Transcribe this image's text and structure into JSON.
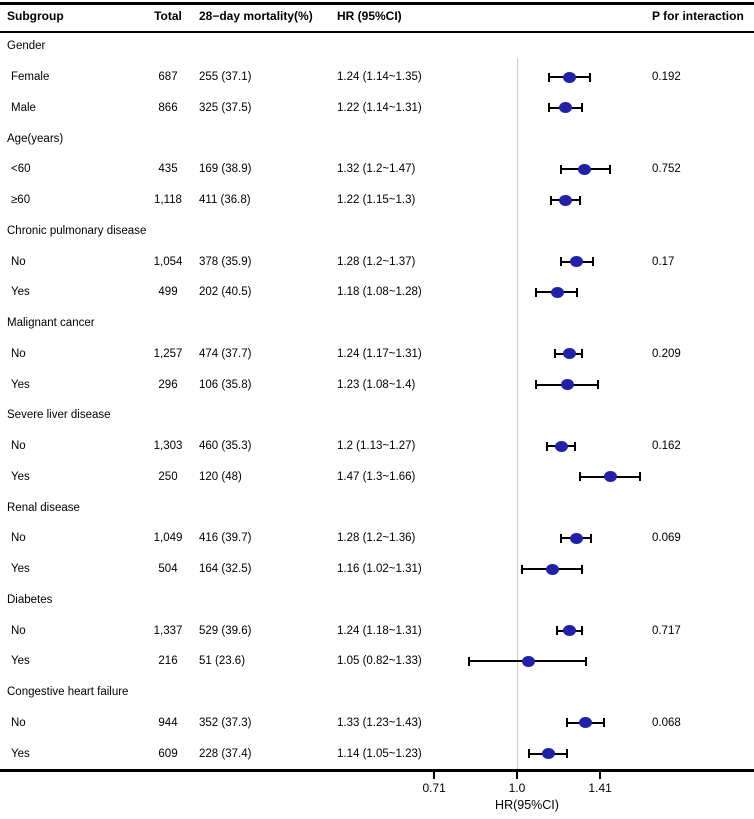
{
  "colors": {
    "dot": "#2121a6",
    "ref_line": "#c9c9c9",
    "rule": "#000000"
  },
  "chart_data": {
    "type": "forest",
    "columns": {
      "subgroup": "Subgroup",
      "total": "Total",
      "mortality": "28−day mortality(%)",
      "hr": "HR (95%CI)",
      "p": "P for interaction"
    },
    "axis": {
      "label": "HR(95%CI)",
      "scale": "log",
      "ref_line": 1.0,
      "ticks": [
        {
          "value": 0.71,
          "label": "0.71"
        },
        {
          "value": 1.0,
          "label": "1.0"
        },
        {
          "value": 1.41,
          "label": "1.41"
        }
      ]
    },
    "groups": [
      {
        "label": "Gender",
        "p": "0.192",
        "items": [
          {
            "label": "Female",
            "total": "687",
            "mortality": "255 (37.1)",
            "hr_text": "1.24 (1.14~1.35)",
            "est": 1.24,
            "lo": 1.14,
            "hi": 1.35
          },
          {
            "label": "Male",
            "total": "866",
            "mortality": "325 (37.5)",
            "hr_text": "1.22 (1.14~1.31)",
            "est": 1.22,
            "lo": 1.14,
            "hi": 1.31
          }
        ]
      },
      {
        "label": "Age(years)",
        "p": "0.752",
        "items": [
          {
            "label": "<60",
            "total": "435",
            "mortality": "169 (38.9)",
            "hr_text": "1.32 (1.2~1.47)",
            "est": 1.32,
            "lo": 1.2,
            "hi": 1.47
          },
          {
            "label": "≥60",
            "total": "1,118",
            "mortality": "411 (36.8)",
            "hr_text": "1.22 (1.15~1.3)",
            "est": 1.22,
            "lo": 1.15,
            "hi": 1.3
          }
        ]
      },
      {
        "label": "Chronic pulmonary disease",
        "p": "0.17",
        "items": [
          {
            "label": "No",
            "total": "1,054",
            "mortality": "378 (35.9)",
            "hr_text": "1.28 (1.2~1.37)",
            "est": 1.28,
            "lo": 1.2,
            "hi": 1.37
          },
          {
            "label": "Yes",
            "total": "499",
            "mortality": "202 (40.5)",
            "hr_text": "1.18 (1.08~1.28)",
            "est": 1.18,
            "lo": 1.08,
            "hi": 1.28
          }
        ]
      },
      {
        "label": "Malignant cancer",
        "p": "0.209",
        "items": [
          {
            "label": "No",
            "total": "1,257",
            "mortality": "474 (37.7)",
            "hr_text": "1.24 (1.17~1.31)",
            "est": 1.24,
            "lo": 1.17,
            "hi": 1.31
          },
          {
            "label": "Yes",
            "total": "296",
            "mortality": "106 (35.8)",
            "hr_text": "1.23 (1.08~1.4)",
            "est": 1.23,
            "lo": 1.08,
            "hi": 1.4
          }
        ]
      },
      {
        "label": "Severe liver disease",
        "p": "0.162",
        "items": [
          {
            "label": "No",
            "total": "1,303",
            "mortality": "460 (35.3)",
            "hr_text": "1.2 (1.13~1.27)",
            "est": 1.2,
            "lo": 1.13,
            "hi": 1.27
          },
          {
            "label": "Yes",
            "total": "250",
            "mortality": "120 (48)",
            "hr_text": "1.47 (1.3~1.66)",
            "est": 1.47,
            "lo": 1.3,
            "hi": 1.66
          }
        ]
      },
      {
        "label": "Renal disease",
        "p": "0.069",
        "items": [
          {
            "label": "No",
            "total": "1,049",
            "mortality": "416 (39.7)",
            "hr_text": "1.28 (1.2~1.36)",
            "est": 1.28,
            "lo": 1.2,
            "hi": 1.36
          },
          {
            "label": "Yes",
            "total": "504",
            "mortality": "164 (32.5)",
            "hr_text": "1.16 (1.02~1.31)",
            "est": 1.16,
            "lo": 1.02,
            "hi": 1.31
          }
        ]
      },
      {
        "label": "Diabetes",
        "p": "0.717",
        "items": [
          {
            "label": "No",
            "total": "1,337",
            "mortality": "529 (39.6)",
            "hr_text": "1.24 (1.18~1.31)",
            "est": 1.24,
            "lo": 1.18,
            "hi": 1.31
          },
          {
            "label": "Yes",
            "total": "216",
            "mortality": "51 (23.6)",
            "hr_text": "1.05 (0.82~1.33)",
            "est": 1.05,
            "lo": 0.82,
            "hi": 1.33
          }
        ]
      },
      {
        "label": "Congestive heart failure",
        "p": "0.068",
        "items": [
          {
            "label": "No",
            "total": "944",
            "mortality": "352 (37.3)",
            "hr_text": "1.33 (1.23~1.43)",
            "est": 1.33,
            "lo": 1.23,
            "hi": 1.43
          },
          {
            "label": "Yes",
            "total": "609",
            "mortality": "228 (37.4)",
            "hr_text": "1.14 (1.05~1.23)",
            "est": 1.14,
            "lo": 1.05,
            "hi": 1.23
          }
        ]
      }
    ]
  }
}
